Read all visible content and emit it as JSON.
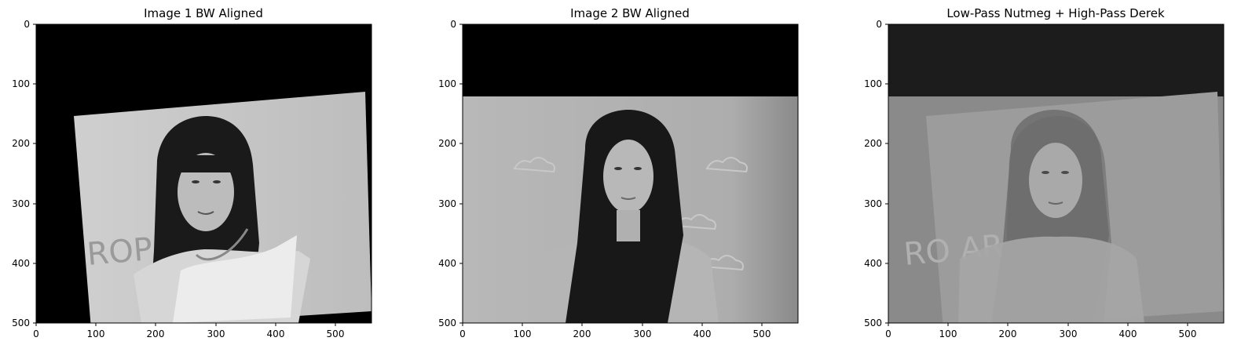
{
  "panels": [
    {
      "title": "Image 1 BW Aligned",
      "x_ticks": [
        "0",
        "100",
        "200",
        "300",
        "400",
        "500"
      ],
      "y_ticks": [
        "0",
        "100",
        "200",
        "300",
        "400",
        "500"
      ],
      "background_text": "ROP   ARD"
    },
    {
      "title": "Image 2 BW Aligned",
      "x_ticks": [
        "0",
        "100",
        "200",
        "300",
        "400",
        "500"
      ],
      "y_ticks": [
        "0",
        "100",
        "200",
        "300",
        "400",
        "500"
      ]
    },
    {
      "title": "Low-Pass Nutmeg + High-Pass Derek",
      "x_ticks": [
        "0",
        "100",
        "200",
        "300",
        "400",
        "500"
      ],
      "y_ticks": [
        "0",
        "100",
        "200",
        "300",
        "400",
        "500"
      ],
      "background_text": "RO     ARD"
    }
  ],
  "colors": {
    "background": "#ffffff",
    "black": "#000000",
    "dark_gray": "#1c1c1c",
    "light_gray": "#c8c8c8"
  }
}
